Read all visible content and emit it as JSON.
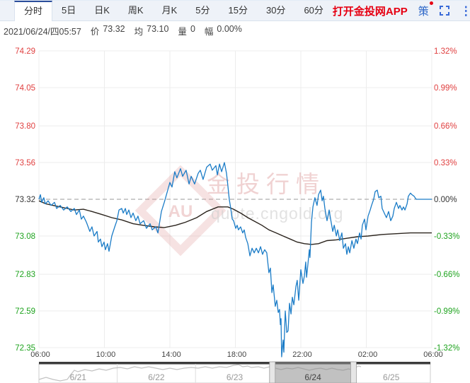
{
  "toolbar": {
    "tabs": [
      {
        "label": "分时",
        "active": true
      },
      {
        "label": "5日",
        "active": false
      },
      {
        "label": "日K",
        "active": false
      },
      {
        "label": "周K",
        "active": false
      },
      {
        "label": "月K",
        "active": false
      },
      {
        "label": "5分",
        "active": false
      },
      {
        "label": "15分",
        "active": false
      },
      {
        "label": "30分",
        "active": false
      },
      {
        "label": "60分",
        "active": false
      }
    ],
    "app_link": "打开金投网APP",
    "strategy": "策",
    "menu_icon": "⋮"
  },
  "info_bar": {
    "datetime": "2021/06/24/四05:57",
    "price_label": "价",
    "price": "73.32",
    "avg_label": "均",
    "avg": "73.10",
    "volume_label": "量",
    "volume": "0",
    "change_label": "幅",
    "change": "0.00%"
  },
  "watermark": {
    "title": "金投行情",
    "subtitle": "quote.cngold.org",
    "logo": "AU"
  },
  "colors": {
    "up": "#e04040",
    "down": "#1ea31e",
    "flat": "#333333",
    "price_line": "#1b7cc7",
    "avg_line": "#2b241d",
    "grid": "#ececec",
    "baseline_dash": "#999999",
    "app_link": "#e60012",
    "icon_blue": "#3a6bd8",
    "tab_active_border": "#2b4d9b",
    "navigator_bar": "#3c3c3c",
    "navigator_border": "#cccccc",
    "navigator_line": "#c2c2c2",
    "selection_fill": "#8f8f8f",
    "selection_handle": "#e6e6e6",
    "watermark_red": "#dd9696",
    "watermark_gray": "#cfcfcf",
    "xlabel": "#444444",
    "daylabel": "#999999",
    "daylabel_selected": "#444444"
  },
  "chart_data": {
    "type": "line",
    "title": "",
    "xlabel": "",
    "ylabel": "",
    "x_axis": {
      "labels": [
        "06:00",
        "10:00",
        "14:00",
        "18:00",
        "22:00",
        "02:00",
        "06:00"
      ],
      "range_hours": [
        0,
        24
      ]
    },
    "y_axis_left": {
      "labels": [
        "74.29",
        "74.05",
        "73.80",
        "73.56",
        "73.32",
        "73.08",
        "72.83",
        "72.59",
        "72.35"
      ],
      "prices": [
        74.29,
        74.05,
        73.8,
        73.56,
        73.32,
        73.08,
        72.83,
        72.59,
        72.35
      ]
    },
    "y_axis_right": {
      "labels": [
        "1.32%",
        "0.99%",
        "0.66%",
        "0.33%",
        "0.00%",
        "-0.33%",
        "-0.66%",
        "-0.99%",
        "-1.32%"
      ]
    },
    "baseline_price": 73.32,
    "price_range": [
      72.35,
      74.29
    ],
    "grid": true,
    "series": [
      {
        "name": "price",
        "points": [
          [
            0,
            73.32
          ],
          [
            0.09,
            73.35
          ],
          [
            0.17,
            73.3
          ],
          [
            0.3,
            73.33
          ],
          [
            0.39,
            73.29
          ],
          [
            0.56,
            73.31
          ],
          [
            0.74,
            73.28
          ],
          [
            0.95,
            73.3
          ],
          [
            1.08,
            73.26
          ],
          [
            1.3,
            73.28
          ],
          [
            1.51,
            73.25
          ],
          [
            1.73,
            73.27
          ],
          [
            1.95,
            73.24
          ],
          [
            2.16,
            73.26
          ],
          [
            2.29,
            73.22
          ],
          [
            2.47,
            73.25
          ],
          [
            2.59,
            73.19
          ],
          [
            2.72,
            73.21
          ],
          [
            2.9,
            73.17
          ],
          [
            3.11,
            73.11
          ],
          [
            3.24,
            73.14
          ],
          [
            3.37,
            73.08
          ],
          [
            3.55,
            73.11
          ],
          [
            3.63,
            73.04
          ],
          [
            3.76,
            73.06
          ],
          [
            3.85,
            73.01
          ],
          [
            3.98,
            73.04
          ],
          [
            4.06,
            72.99
          ],
          [
            4.19,
            73.03
          ],
          [
            4.28,
            72.98
          ],
          [
            4.45,
            73.08
          ],
          [
            4.63,
            73.14
          ],
          [
            4.76,
            73.18
          ],
          [
            4.89,
            73.25
          ],
          [
            5.06,
            73.26
          ],
          [
            5.15,
            73.23
          ],
          [
            5.28,
            73.26
          ],
          [
            5.36,
            73.22
          ],
          [
            5.49,
            73.25
          ],
          [
            5.62,
            73.2
          ],
          [
            5.75,
            73.23
          ],
          [
            5.92,
            73.18
          ],
          [
            6.05,
            73.21
          ],
          [
            6.18,
            73.16
          ],
          [
            6.4,
            73.18
          ],
          [
            6.57,
            73.13
          ],
          [
            6.79,
            73.16
          ],
          [
            6.92,
            73.12
          ],
          [
            7.14,
            73.14
          ],
          [
            7.27,
            73.1
          ],
          [
            7.48,
            73.24
          ],
          [
            7.66,
            73.3
          ],
          [
            7.87,
            73.38
          ],
          [
            8.0,
            73.43
          ],
          [
            8.13,
            73.4
          ],
          [
            8.3,
            73.5
          ],
          [
            8.43,
            73.46
          ],
          [
            8.65,
            73.52
          ],
          [
            8.78,
            73.47
          ],
          [
            8.99,
            73.51
          ],
          [
            9.17,
            73.42
          ],
          [
            9.3,
            73.47
          ],
          [
            9.51,
            73.42
          ],
          [
            9.73,
            73.49
          ],
          [
            9.86,
            73.51
          ],
          [
            10.03,
            73.45
          ],
          [
            10.25,
            73.53
          ],
          [
            10.46,
            73.55
          ],
          [
            10.59,
            73.51
          ],
          [
            10.81,
            73.54
          ],
          [
            10.9,
            73.48
          ],
          [
            11.03,
            73.55
          ],
          [
            11.16,
            73.5
          ],
          [
            11.33,
            73.56
          ],
          [
            11.46,
            73.49
          ],
          [
            11.54,
            73.41
          ],
          [
            11.63,
            73.32
          ],
          [
            11.72,
            73.26
          ],
          [
            11.81,
            73.19
          ],
          [
            11.89,
            73.18
          ],
          [
            12.02,
            73.13
          ],
          [
            12.11,
            73.15
          ],
          [
            12.19,
            73.12
          ],
          [
            12.32,
            73.14
          ],
          [
            12.45,
            73.1
          ],
          [
            12.54,
            73.12
          ],
          [
            12.63,
            73.07
          ],
          [
            12.76,
            73.03
          ],
          [
            12.89,
            72.95
          ],
          [
            13.02,
            73.0
          ],
          [
            13.15,
            72.97
          ],
          [
            13.28,
            73.0
          ],
          [
            13.41,
            72.97
          ],
          [
            13.54,
            73.01
          ],
          [
            13.66,
            72.96
          ],
          [
            13.79,
            72.99
          ],
          [
            13.92,
            72.97
          ],
          [
            14.05,
            72.84
          ],
          [
            14.14,
            72.87
          ],
          [
            14.23,
            72.71
          ],
          [
            14.31,
            72.76
          ],
          [
            14.44,
            72.62
          ],
          [
            14.53,
            72.66
          ],
          [
            14.62,
            72.58
          ],
          [
            14.7,
            72.6
          ],
          [
            14.75,
            72.5
          ],
          [
            14.79,
            72.54
          ],
          [
            14.83,
            72.29
          ],
          [
            14.92,
            72.4
          ],
          [
            14.96,
            72.32
          ],
          [
            15.05,
            72.59
          ],
          [
            15.14,
            72.45
          ],
          [
            15.22,
            72.46
          ],
          [
            15.31,
            72.64
          ],
          [
            15.4,
            72.57
          ],
          [
            15.48,
            72.68
          ],
          [
            15.57,
            72.63
          ],
          [
            15.7,
            72.75
          ],
          [
            15.78,
            72.79
          ],
          [
            15.87,
            72.66
          ],
          [
            16.0,
            72.86
          ],
          [
            16.13,
            72.77
          ],
          [
            16.22,
            72.82
          ],
          [
            16.3,
            72.91
          ],
          [
            16.35,
            72.81
          ],
          [
            16.43,
            72.89
          ],
          [
            16.52,
            72.99
          ],
          [
            16.56,
            72.94
          ],
          [
            16.65,
            73.17
          ],
          [
            16.74,
            73.27
          ],
          [
            16.86,
            73.33
          ],
          [
            16.99,
            73.28
          ],
          [
            17.08,
            73.35
          ],
          [
            17.21,
            73.38
          ],
          [
            17.3,
            73.31
          ],
          [
            17.38,
            73.34
          ],
          [
            17.47,
            73.26
          ],
          [
            17.6,
            73.18
          ],
          [
            17.73,
            73.25
          ],
          [
            17.82,
            73.19
          ],
          [
            17.95,
            73.11
          ],
          [
            18.04,
            73.15
          ],
          [
            18.17,
            73.08
          ],
          [
            18.25,
            73.12
          ],
          [
            18.38,
            73.05
          ],
          [
            18.51,
            73.1
          ],
          [
            18.6,
            73.0
          ],
          [
            18.73,
            73.03
          ],
          [
            18.81,
            72.96
          ],
          [
            18.9,
            73.01
          ],
          [
            18.99,
            72.97
          ],
          [
            19.12,
            73.05
          ],
          [
            19.24,
            73.0
          ],
          [
            19.37,
            73.06
          ],
          [
            19.46,
            73.03
          ],
          [
            19.59,
            73.1
          ],
          [
            19.68,
            73.06
          ],
          [
            19.76,
            73.15
          ],
          [
            19.89,
            73.19
          ],
          [
            19.98,
            73.12
          ],
          [
            20.11,
            73.21
          ],
          [
            20.24,
            73.25
          ],
          [
            20.32,
            73.28
          ],
          [
            20.45,
            73.32
          ],
          [
            20.54,
            73.37
          ],
          [
            20.67,
            73.38
          ],
          [
            20.76,
            73.33
          ],
          [
            20.89,
            73.34
          ],
          [
            20.97,
            73.26
          ],
          [
            21.1,
            73.23
          ],
          [
            21.23,
            73.2
          ],
          [
            21.36,
            73.24
          ],
          [
            21.49,
            73.18
          ],
          [
            21.62,
            73.21
          ],
          [
            21.71,
            73.26
          ],
          [
            21.84,
            73.3
          ],
          [
            21.97,
            73.26
          ],
          [
            22.05,
            73.28
          ],
          [
            22.18,
            73.25
          ],
          [
            22.27,
            73.27
          ],
          [
            22.36,
            73.25
          ],
          [
            22.49,
            73.29
          ],
          [
            22.57,
            73.34
          ],
          [
            22.7,
            73.36
          ],
          [
            22.79,
            73.35
          ],
          [
            22.92,
            73.34
          ],
          [
            23.05,
            73.32
          ],
          [
            23.14,
            73.32
          ],
          [
            24.0,
            73.32
          ]
        ]
      },
      {
        "name": "average",
        "points": [
          [
            0,
            73.31
          ],
          [
            0.43,
            73.29
          ],
          [
            0.87,
            73.28
          ],
          [
            1.3,
            73.27
          ],
          [
            1.73,
            73.26
          ],
          [
            2.16,
            73.25
          ],
          [
            2.72,
            73.255
          ],
          [
            3.24,
            73.24
          ],
          [
            3.85,
            73.22
          ],
          [
            4.45,
            73.2
          ],
          [
            5.06,
            73.185
          ],
          [
            5.75,
            73.16
          ],
          [
            6.36,
            73.15
          ],
          [
            7.05,
            73.14
          ],
          [
            7.66,
            73.135
          ],
          [
            8.35,
            73.15
          ],
          [
            8.95,
            73.17
          ],
          [
            9.64,
            73.2
          ],
          [
            10.25,
            73.24
          ],
          [
            10.94,
            73.27
          ],
          [
            11.54,
            73.27
          ],
          [
            11.89,
            73.255
          ],
          [
            12.32,
            73.23
          ],
          [
            12.76,
            73.2
          ],
          [
            13.19,
            73.175
          ],
          [
            13.62,
            73.15
          ],
          [
            14.05,
            73.12
          ],
          [
            14.49,
            73.1
          ],
          [
            14.92,
            73.08
          ],
          [
            15.35,
            73.06
          ],
          [
            15.78,
            73.04
          ],
          [
            16.22,
            73.03
          ],
          [
            16.65,
            73.025
          ],
          [
            17.08,
            73.03
          ],
          [
            17.6,
            73.05
          ],
          [
            18.17,
            73.055
          ],
          [
            18.81,
            73.065
          ],
          [
            19.46,
            73.075
          ],
          [
            20.11,
            73.08
          ],
          [
            20.97,
            73.09
          ],
          [
            21.84,
            73.095
          ],
          [
            22.7,
            73.1
          ],
          [
            24.0,
            73.1
          ]
        ]
      }
    ],
    "navigator": {
      "days": [
        "6/21",
        "6/22",
        "6/23",
        "6/24",
        "6/25"
      ],
      "selected_day": "6/24",
      "selected_index": 3,
      "mini_points": [
        [
          0,
          22
        ],
        [
          10,
          19
        ],
        [
          20,
          22
        ],
        [
          30,
          24
        ],
        [
          40,
          22
        ],
        [
          45,
          15
        ],
        [
          50,
          9
        ],
        [
          55,
          11
        ],
        [
          65,
          8
        ],
        [
          75,
          10
        ],
        [
          85,
          7
        ],
        [
          95,
          9
        ],
        [
          105,
          6
        ],
        [
          115,
          5
        ],
        [
          125,
          7
        ],
        [
          135,
          4
        ],
        [
          145,
          6
        ],
        [
          155,
          4
        ],
        [
          165,
          6
        ],
        [
          175,
          8
        ],
        [
          185,
          6
        ],
        [
          195,
          8
        ],
        [
          205,
          6
        ],
        [
          215,
          5
        ],
        [
          225,
          6
        ],
        [
          235,
          4
        ],
        [
          245,
          6
        ],
        [
          255,
          4
        ],
        [
          265,
          5
        ],
        [
          275,
          2
        ],
        [
          282,
          1
        ],
        [
          288,
          4
        ],
        [
          295,
          3
        ],
        [
          300,
          5
        ],
        [
          310,
          4
        ],
        [
          318,
          6
        ],
        [
          326,
          4
        ],
        [
          334,
          6
        ],
        [
          342,
          8
        ],
        [
          350,
          6
        ],
        [
          358,
          7
        ],
        [
          366,
          5
        ],
        [
          374,
          7
        ],
        [
          382,
          9
        ],
        [
          390,
          7
        ],
        [
          398,
          6
        ],
        [
          406,
          8
        ],
        [
          414,
          6
        ],
        [
          422,
          8
        ],
        [
          430,
          9
        ],
        [
          437,
          7
        ],
        [
          442,
          8
        ],
        [
          447,
          5
        ],
        [
          452,
          3
        ],
        [
          455,
          4
        ]
      ]
    }
  }
}
